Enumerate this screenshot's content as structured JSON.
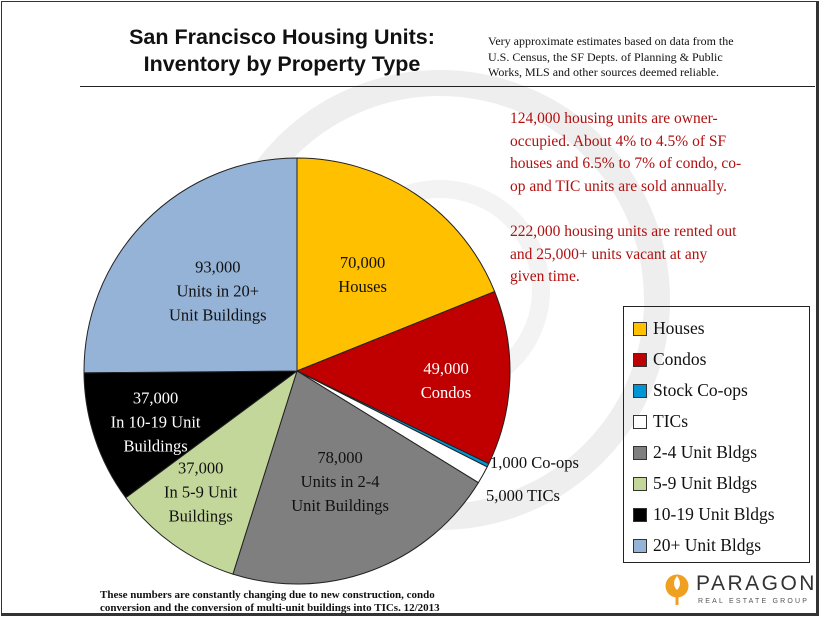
{
  "title_lines": [
    "San Francisco Housing Units:",
    "Inventory by Property Type"
  ],
  "source_note_lines": [
    "Very approximate estimates based on data from the",
    "U.S. Census,  the SF Depts. of Planning & Public",
    "Works, MLS and other sources deemed reliable."
  ],
  "annotation_1_lines": [
    "124,000 housing units are owner-",
    "occupied. About 4% to 4.5% of SF",
    "houses and 6.5% to 7% of condo, co-",
    "op and TIC units  are sold annually."
  ],
  "annotation_2_lines": [
    "222,000 housing units are rented out",
    "and 25,000+ units vacant at any",
    "given time."
  ],
  "footnote_lines": [
    "These numbers are constantly changing due to new construction, condo",
    "conversion and the conversion of multi-unit buildings into TICs. 12/2013"
  ],
  "logo": {
    "name": "PARAGON",
    "subtitle": "REAL ESTATE GROUP",
    "mark": "torch-logo-icon"
  },
  "chart_data": {
    "type": "pie",
    "title": "San Francisco Housing Units: Inventory by Property Type",
    "legend_position": "right",
    "series": [
      {
        "name": "Houses",
        "value": 70000,
        "color": "#FFC000",
        "label_lines": [
          "70,000",
          "Houses"
        ],
        "label_color": "#111111"
      },
      {
        "name": "Condos",
        "value": 49000,
        "color": "#C00000",
        "label_lines": [
          "49,000",
          "Condos"
        ],
        "label_color": "#ffffff"
      },
      {
        "name": "Stock Co-ops",
        "value": 1000,
        "color": "#0096D6",
        "label_lines": [
          "1,000 Co-ops"
        ],
        "label_color": "#111111"
      },
      {
        "name": "TICs",
        "value": 5000,
        "color": "#FFFFFF",
        "label_lines": [
          "5,000  TICs"
        ],
        "label_color": "#111111"
      },
      {
        "name": "2-4 Unit Bldgs",
        "value": 78000,
        "color": "#7F7F7F",
        "label_lines": [
          "78,000",
          "Units in 2-4",
          "Unit Buildings"
        ],
        "label_color": "#111111"
      },
      {
        "name": "5-9 Unit Bldgs",
        "value": 37000,
        "color": "#C4D79B",
        "label_lines": [
          "37,000",
          "In 5-9 Unit",
          "Buildings"
        ],
        "label_color": "#111111"
      },
      {
        "name": "10-19 Unit Bldgs",
        "value": 37000,
        "color": "#000000",
        "label_lines": [
          "37,000",
          "In 10-19 Unit",
          "Buildings"
        ],
        "label_color": "#ffffff"
      },
      {
        "name": "20+ Unit Bldgs",
        "value": 93000,
        "color": "#95B3D7",
        "label_lines": [
          "93,000",
          "Units in 20+",
          "Unit Buildings"
        ],
        "label_color": "#111111"
      }
    ]
  }
}
